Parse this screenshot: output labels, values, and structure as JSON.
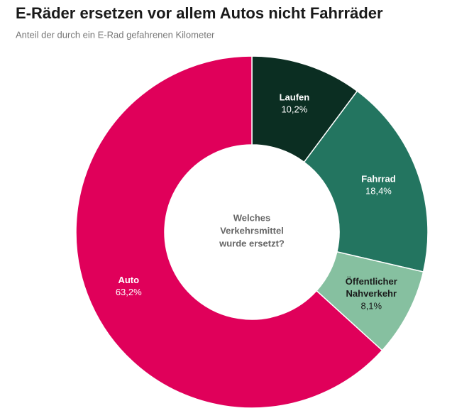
{
  "chart_data": {
    "type": "donut",
    "title": "E-Räder ersetzen vor allem Autos nicht Fahrräder",
    "subtitle": "Anteil der durch ein E-Rad gefahrenen Kilometer",
    "center_label": [
      "Welches",
      "Verkehrsmittel",
      "wurde ersetzt?"
    ],
    "categories": [
      "Laufen",
      "Fahrrad",
      "Öffentlicher Nahverkehr",
      "Auto"
    ],
    "values": [
      10.2,
      18.4,
      8.1,
      63.2
    ],
    "value_labels": [
      "10,2%",
      "18,4%",
      "8,1%",
      "63,2%"
    ],
    "colors": [
      "#0b2e22",
      "#237560",
      "#86c0a0",
      "#e0005a"
    ]
  }
}
